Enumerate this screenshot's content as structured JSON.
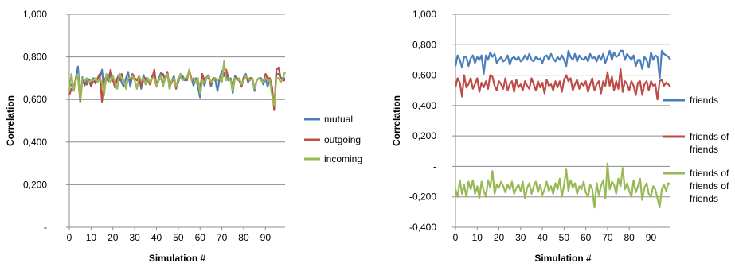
{
  "chart_data": [
    {
      "type": "line",
      "xlabel": "Simulation #",
      "ylabel": "Correlation",
      "ylim": [
        0,
        1
      ],
      "xlim": [
        0,
        99
      ],
      "yticks": [
        0,
        0.2,
        0.4,
        0.6,
        0.8,
        1.0
      ],
      "ytick_labels": [
        "-",
        "0,200",
        "0,400",
        "0,600",
        "0,800",
        "1,000"
      ],
      "xticks": [
        0,
        10,
        20,
        30,
        40,
        50,
        60,
        70,
        80,
        90
      ],
      "xtick_labels": [
        "0",
        "10",
        "20",
        "30",
        "40",
        "50",
        "60",
        "70",
        "80",
        "90"
      ],
      "grid": "horizontal",
      "legend_position": "right",
      "series": [
        {
          "name": "mutual",
          "color": "#4a7ebb",
          "values": [
            0.66,
            0.67,
            0.645,
            0.7,
            0.755,
            0.6,
            0.705,
            0.665,
            0.69,
            0.695,
            0.67,
            0.7,
            0.675,
            0.69,
            0.705,
            0.74,
            0.64,
            0.705,
            0.685,
            0.72,
            0.695,
            0.655,
            0.7,
            0.72,
            0.68,
            0.66,
            0.7,
            0.73,
            0.66,
            0.715,
            0.7,
            0.69,
            0.705,
            0.65,
            0.715,
            0.69,
            0.7,
            0.675,
            0.71,
            0.72,
            0.665,
            0.695,
            0.725,
            0.67,
            0.7,
            0.73,
            0.65,
            0.69,
            0.71,
            0.655,
            0.68,
            0.72,
            0.71,
            0.69,
            0.705,
            0.73,
            0.7,
            0.665,
            0.7,
            0.66,
            0.61,
            0.7,
            0.665,
            0.705,
            0.715,
            0.66,
            0.7,
            0.69,
            0.64,
            0.7,
            0.735,
            0.71,
            0.72,
            0.69,
            0.7,
            0.63,
            0.71,
            0.7,
            0.69,
            0.66,
            0.705,
            0.72,
            0.68,
            0.7,
            0.7,
            0.64,
            0.69,
            0.7,
            0.7,
            0.67,
            0.7,
            0.66,
            0.7,
            0.64,
            0.57,
            0.72,
            0.72,
            0.7,
            0.7,
            0.7
          ]
        },
        {
          "name": "outgoing",
          "color": "#be4b48",
          "values": [
            0.62,
            0.65,
            0.64,
            0.7,
            0.71,
            0.59,
            0.69,
            0.68,
            0.67,
            0.69,
            0.66,
            0.69,
            0.68,
            0.7,
            0.72,
            0.59,
            0.7,
            0.69,
            0.7,
            0.74,
            0.69,
            0.66,
            0.7,
            0.69,
            0.72,
            0.68,
            0.66,
            0.7,
            0.69,
            0.72,
            0.7,
            0.69,
            0.71,
            0.66,
            0.69,
            0.7,
            0.69,
            0.67,
            0.7,
            0.74,
            0.66,
            0.69,
            0.7,
            0.72,
            0.69,
            0.73,
            0.66,
            0.68,
            0.7,
            0.65,
            0.7,
            0.71,
            0.69,
            0.7,
            0.69,
            0.74,
            0.7,
            0.69,
            0.68,
            0.69,
            0.65,
            0.72,
            0.69,
            0.7,
            0.7,
            0.67,
            0.7,
            0.7,
            0.69,
            0.69,
            0.7,
            0.72,
            0.74,
            0.7,
            0.69,
            0.67,
            0.7,
            0.7,
            0.69,
            0.66,
            0.7,
            0.71,
            0.69,
            0.7,
            0.7,
            0.65,
            0.69,
            0.7,
            0.69,
            0.68,
            0.72,
            0.7,
            0.7,
            0.66,
            0.55,
            0.74,
            0.75,
            0.7,
            0.69,
            0.69
          ]
        },
        {
          "name": "incoming",
          "color": "#98b954",
          "values": [
            0.64,
            0.72,
            0.64,
            0.69,
            0.72,
            0.6,
            0.7,
            0.69,
            0.7,
            0.68,
            0.69,
            0.69,
            0.7,
            0.68,
            0.7,
            0.68,
            0.62,
            0.72,
            0.7,
            0.68,
            0.71,
            0.68,
            0.65,
            0.72,
            0.7,
            0.69,
            0.65,
            0.7,
            0.7,
            0.71,
            0.69,
            0.65,
            0.71,
            0.69,
            0.7,
            0.67,
            0.7,
            0.68,
            0.7,
            0.7,
            0.66,
            0.69,
            0.71,
            0.66,
            0.7,
            0.72,
            0.65,
            0.69,
            0.7,
            0.66,
            0.69,
            0.72,
            0.69,
            0.7,
            0.7,
            0.74,
            0.69,
            0.7,
            0.68,
            0.7,
            0.63,
            0.69,
            0.68,
            0.7,
            0.71,
            0.68,
            0.69,
            0.7,
            0.69,
            0.7,
            0.68,
            0.78,
            0.69,
            0.7,
            0.69,
            0.64,
            0.7,
            0.69,
            0.7,
            0.67,
            0.69,
            0.71,
            0.7,
            0.69,
            0.7,
            0.65,
            0.69,
            0.7,
            0.69,
            0.68,
            0.7,
            0.69,
            0.69,
            0.62,
            0.57,
            0.7,
            0.7,
            0.68,
            0.7,
            0.73
          ]
        }
      ]
    },
    {
      "type": "line",
      "xlabel": "Simulation #",
      "ylabel": "Correlation",
      "ylim": [
        -0.4,
        1
      ],
      "xlim": [
        0,
        99
      ],
      "yticks": [
        -0.4,
        -0.2,
        0,
        0.2,
        0.4,
        0.6,
        0.8,
        1.0
      ],
      "ytick_labels": [
        "-0,400",
        "-0,200",
        "-",
        "0,200",
        "0,400",
        "0,600",
        "0,800",
        "1,000"
      ],
      "xticks": [
        0,
        10,
        20,
        30,
        40,
        50,
        60,
        70,
        80,
        90
      ],
      "xtick_labels": [
        "0",
        "10",
        "20",
        "30",
        "40",
        "50",
        "60",
        "70",
        "80",
        "90"
      ],
      "grid": "horizontal",
      "legend_position": "right",
      "series": [
        {
          "name": "friends",
          "color": "#4a7ebb",
          "legend_lines": [
            "friends"
          ],
          "values": [
            0.66,
            0.73,
            0.7,
            0.65,
            0.72,
            0.72,
            0.66,
            0.71,
            0.73,
            0.68,
            0.72,
            0.7,
            0.73,
            0.61,
            0.73,
            0.7,
            0.75,
            0.72,
            0.74,
            0.68,
            0.7,
            0.72,
            0.69,
            0.7,
            0.73,
            0.67,
            0.71,
            0.72,
            0.7,
            0.72,
            0.69,
            0.7,
            0.73,
            0.7,
            0.74,
            0.7,
            0.69,
            0.72,
            0.7,
            0.71,
            0.68,
            0.72,
            0.73,
            0.7,
            0.74,
            0.71,
            0.69,
            0.72,
            0.7,
            0.73,
            0.7,
            0.66,
            0.76,
            0.72,
            0.7,
            0.74,
            0.69,
            0.73,
            0.71,
            0.7,
            0.72,
            0.69,
            0.74,
            0.71,
            0.72,
            0.69,
            0.73,
            0.7,
            0.74,
            0.68,
            0.72,
            0.76,
            0.7,
            0.75,
            0.72,
            0.73,
            0.76,
            0.76,
            0.7,
            0.74,
            0.72,
            0.7,
            0.73,
            0.66,
            0.7,
            0.7,
            0.64,
            0.72,
            0.7,
            0.65,
            0.75,
            0.7,
            0.73,
            0.72,
            0.58,
            0.76,
            0.74,
            0.73,
            0.72,
            0.7
          ]
        },
        {
          "name": "friends of friends",
          "color": "#be4b48",
          "legend_lines": [
            "friends of",
            "friends"
          ],
          "values": [
            0.52,
            0.58,
            0.55,
            0.46,
            0.6,
            0.52,
            0.54,
            0.58,
            0.51,
            0.54,
            0.58,
            0.49,
            0.55,
            0.52,
            0.56,
            0.51,
            0.6,
            0.59,
            0.53,
            0.5,
            0.56,
            0.54,
            0.51,
            0.58,
            0.5,
            0.54,
            0.56,
            0.49,
            0.57,
            0.52,
            0.54,
            0.5,
            0.56,
            0.53,
            0.51,
            0.58,
            0.54,
            0.5,
            0.56,
            0.52,
            0.55,
            0.48,
            0.57,
            0.53,
            0.54,
            0.5,
            0.56,
            0.52,
            0.56,
            0.49,
            0.57,
            0.6,
            0.56,
            0.58,
            0.5,
            0.54,
            0.57,
            0.51,
            0.55,
            0.53,
            0.56,
            0.49,
            0.54,
            0.58,
            0.5,
            0.54,
            0.56,
            0.48,
            0.56,
            0.53,
            0.62,
            0.53,
            0.59,
            0.5,
            0.56,
            0.51,
            0.64,
            0.49,
            0.56,
            0.54,
            0.5,
            0.56,
            0.53,
            0.47,
            0.55,
            0.56,
            0.47,
            0.54,
            0.56,
            0.5,
            0.56,
            0.53,
            0.54,
            0.44,
            0.56,
            0.57,
            0.53,
            0.55,
            0.54,
            0.52
          ]
        },
        {
          "name": "friends of friends of friends",
          "color": "#98b954",
          "legend_lines": [
            "friends of",
            "friends of",
            "friends"
          ],
          "values": [
            -0.15,
            -0.2,
            -0.09,
            -0.18,
            -0.12,
            -0.2,
            -0.1,
            -0.15,
            -0.09,
            -0.18,
            -0.13,
            -0.21,
            -0.1,
            -0.16,
            -0.2,
            -0.09,
            -0.14,
            -0.03,
            -0.18,
            -0.12,
            -0.14,
            -0.1,
            -0.13,
            -0.17,
            -0.12,
            -0.15,
            -0.1,
            -0.18,
            -0.14,
            -0.12,
            -0.16,
            -0.1,
            -0.21,
            -0.14,
            -0.11,
            -0.18,
            -0.13,
            -0.1,
            -0.17,
            -0.12,
            -0.19,
            -0.15,
            -0.1,
            -0.16,
            -0.13,
            -0.18,
            -0.11,
            -0.15,
            -0.08,
            -0.2,
            -0.12,
            -0.02,
            -0.16,
            -0.09,
            -0.14,
            -0.11,
            -0.18,
            -0.13,
            -0.15,
            -0.1,
            -0.17,
            -0.2,
            -0.12,
            -0.15,
            -0.27,
            -0.11,
            -0.19,
            -0.13,
            -0.09,
            -0.21,
            0.02,
            -0.15,
            -0.1,
            -0.12,
            -0.18,
            -0.08,
            -0.13,
            -0.01,
            -0.15,
            -0.11,
            -0.16,
            -0.2,
            -0.09,
            -0.17,
            -0.13,
            -0.08,
            -0.22,
            -0.14,
            -0.11,
            -0.18,
            -0.2,
            -0.13,
            -0.15,
            -0.21,
            -0.27,
            -0.15,
            -0.12,
            -0.16,
            -0.11,
            -0.12
          ]
        }
      ]
    }
  ]
}
